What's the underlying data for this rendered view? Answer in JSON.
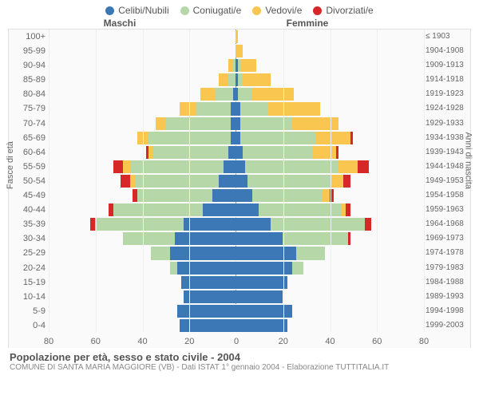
{
  "legend": [
    {
      "label": "Celibi/Nubili",
      "color": "#3b78b5"
    },
    {
      "label": "Coniugati/e",
      "color": "#b6d7a8"
    },
    {
      "label": "Vedovi/e",
      "color": "#f9c74f"
    },
    {
      "label": "Divorziati/e",
      "color": "#d62828"
    }
  ],
  "gender_labels": {
    "male": "Maschi",
    "female": "Femmine"
  },
  "axis_titles": {
    "left": "Fasce di età",
    "right": "Anni di nascita"
  },
  "xticks": [
    -80,
    -60,
    -40,
    -20,
    0,
    20,
    40,
    60,
    80
  ],
  "xmax": 80,
  "colors": {
    "single": "#3b78b5",
    "married": "#b6d7a8",
    "widowed": "#f9c74f",
    "divorced": "#d62828",
    "background": "#fafafa",
    "grid": "#eeeeee"
  },
  "age_groups": [
    "0-4",
    "5-9",
    "10-14",
    "15-19",
    "20-24",
    "25-29",
    "30-34",
    "35-39",
    "40-44",
    "45-49",
    "50-54",
    "55-59",
    "60-64",
    "65-69",
    "70-74",
    "75-79",
    "80-84",
    "85-89",
    "90-94",
    "95-99",
    "100+"
  ],
  "birth_years": [
    "1999-2003",
    "1994-1998",
    "1989-1993",
    "1984-1988",
    "1979-1983",
    "1974-1978",
    "1969-1973",
    "1964-1968",
    "1959-1963",
    "1954-1958",
    "1949-1953",
    "1944-1948",
    "1939-1943",
    "1934-1938",
    "1929-1933",
    "1924-1928",
    "1919-1923",
    "1914-1918",
    "1909-1913",
    "1904-1908",
    "≤ 1903"
  ],
  "data": {
    "male": {
      "single": [
        24,
        25,
        22,
        23,
        25,
        28,
        26,
        22,
        14,
        10,
        7,
        5,
        3,
        2,
        2,
        2,
        1,
        0,
        0,
        0,
        0
      ],
      "married": [
        0,
        0,
        0,
        0,
        3,
        8,
        22,
        38,
        38,
        32,
        36,
        40,
        32,
        35,
        28,
        15,
        8,
        3,
        1,
        0,
        0
      ],
      "widowed": [
        0,
        0,
        0,
        0,
        0,
        0,
        0,
        0,
        0,
        0,
        2,
        3,
        2,
        5,
        4,
        7,
        6,
        4,
        2,
        0,
        0
      ],
      "divorced": [
        0,
        0,
        0,
        0,
        0,
        0,
        0,
        2,
        2,
        2,
        4,
        4,
        1,
        0,
        0,
        0,
        0,
        0,
        0,
        0,
        0
      ]
    },
    "female": {
      "single": [
        22,
        24,
        20,
        22,
        24,
        26,
        20,
        15,
        10,
        7,
        5,
        4,
        3,
        2,
        2,
        2,
        1,
        1,
        1,
        0,
        0
      ],
      "married": [
        0,
        0,
        0,
        0,
        5,
        12,
        28,
        40,
        35,
        30,
        35,
        40,
        30,
        32,
        22,
        12,
        6,
        2,
        1,
        0,
        0
      ],
      "widowed": [
        0,
        0,
        0,
        0,
        0,
        0,
        0,
        0,
        2,
        3,
        6,
        8,
        10,
        15,
        20,
        22,
        18,
        12,
        7,
        3,
        1
      ],
      "divorced": [
        0,
        0,
        0,
        0,
        0,
        0,
        1,
        3,
        2,
        2,
        3,
        5,
        1,
        1,
        0,
        0,
        0,
        0,
        0,
        0,
        0
      ]
    }
  },
  "footer": {
    "title": "Popolazione per età, sesso e stato civile - 2004",
    "subtitle": "COMUNE DI SANTA MARIA MAGGIORE (VB) - Dati ISTAT 1° gennaio 2004 - Elaborazione TUTTITALIA.IT"
  }
}
